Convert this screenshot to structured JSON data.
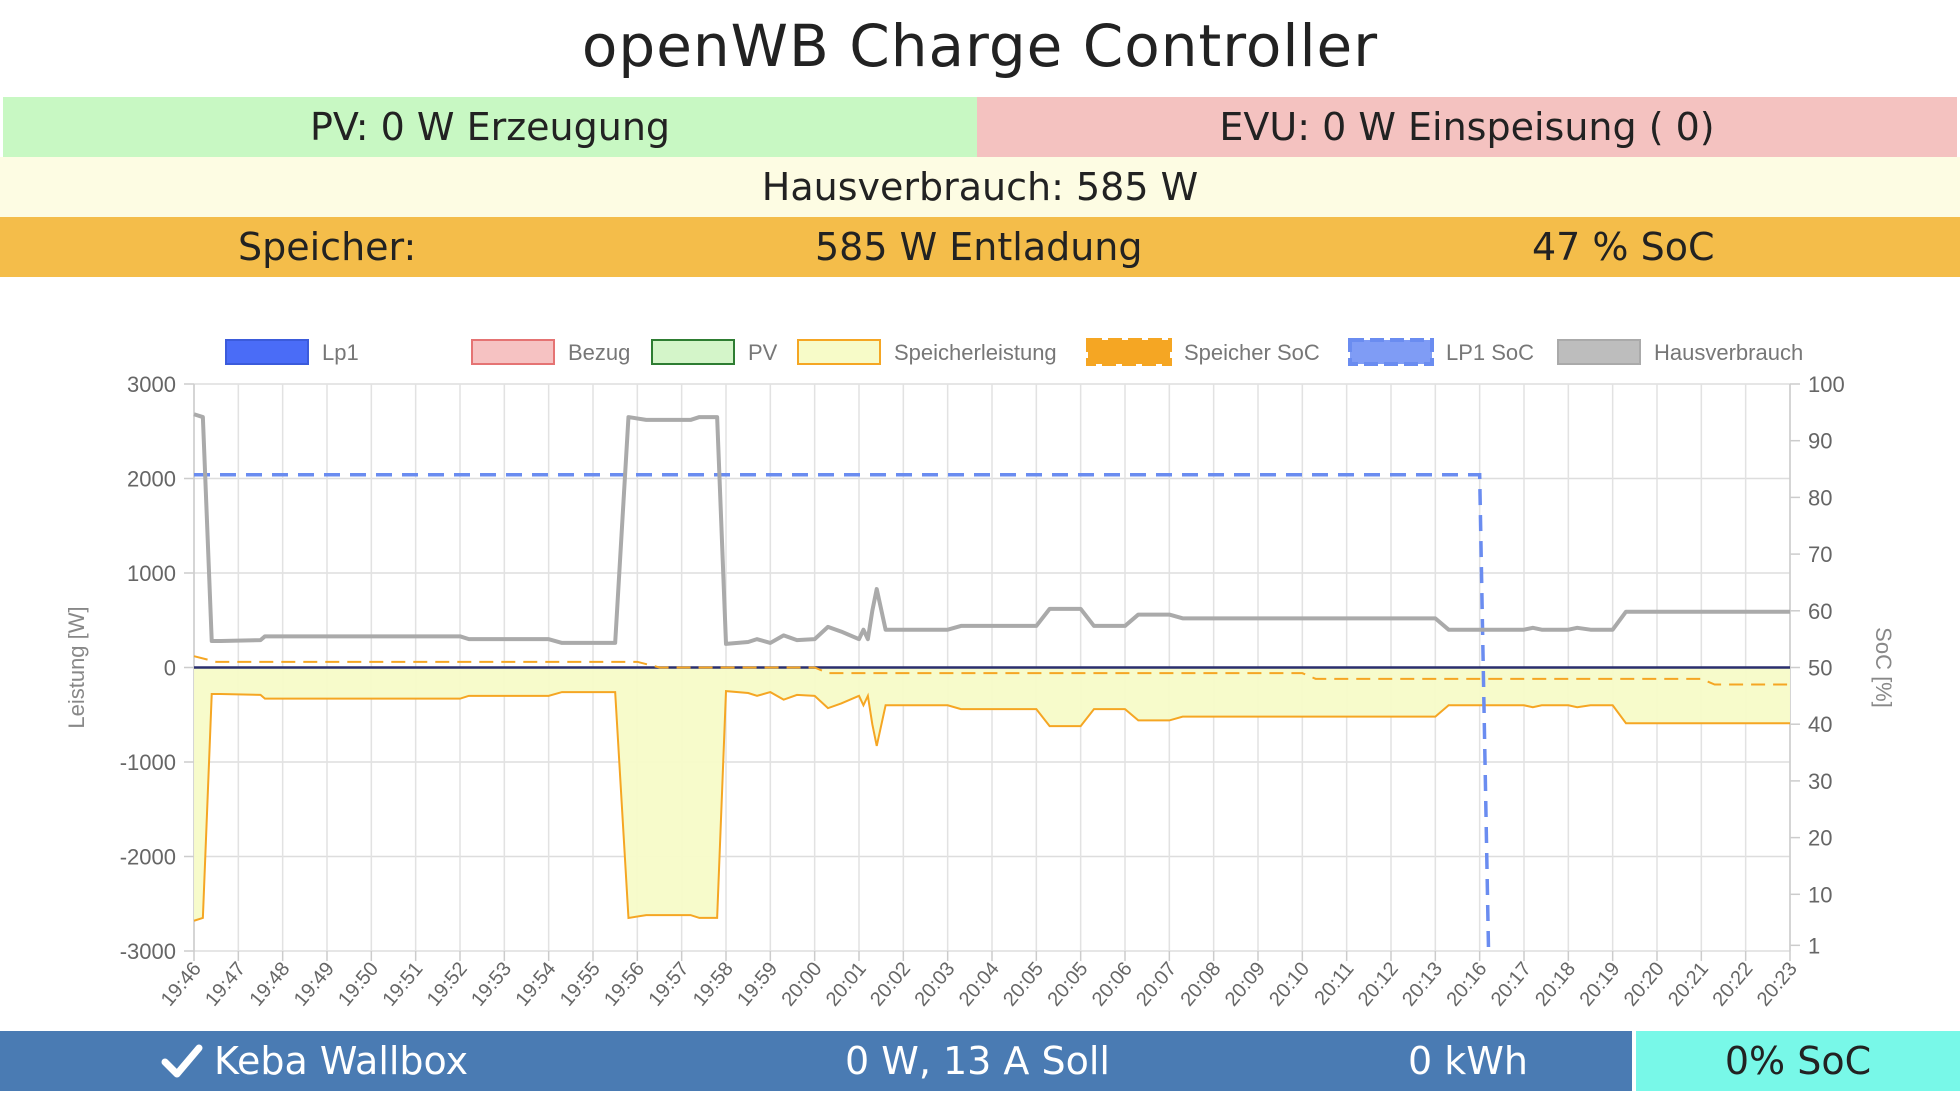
{
  "title": "openWB Charge Controller",
  "status": {
    "pv": "PV: 0 W Erzeugung",
    "evu": "EVU: 0 W Einspeisung ( 0)",
    "hausverbrauch": "Hausverbrauch: 585 W",
    "speicher_label": "Speicher:",
    "speicher_power": "585 W Entladung",
    "speicher_soc": "47 % SoC"
  },
  "wallbox": {
    "name": "Keba Wallbox",
    "power": "0 W, 13 A Soll",
    "energy": "0 kWh",
    "soc": "0% SoC",
    "icon": "check-icon"
  },
  "chart_data": {
    "type": "line",
    "ylabel": "Leistung [W]",
    "y2label": "SoC [%]",
    "ylim": [
      -3000,
      3000
    ],
    "yticks": [
      3000,
      2000,
      1000,
      0,
      -1000,
      -2000,
      -3000
    ],
    "y2lim": [
      0,
      100
    ],
    "y2ticks": [
      100,
      90,
      80,
      70,
      60,
      50,
      40,
      30,
      20,
      10,
      1
    ],
    "grid": true,
    "legend_position": "top",
    "x": [
      "19:46",
      "19:47",
      "19:48",
      "19:49",
      "19:50",
      "19:51",
      "19:52",
      "19:53",
      "19:54",
      "19:55",
      "19:56",
      "19:57",
      "19:58",
      "19:59",
      "20:00",
      "20:01",
      "20:02",
      "20:03",
      "20:04",
      "20:05",
      "20:05",
      "20:06",
      "20:07",
      "20:08",
      "20:09",
      "20:10",
      "20:11",
      "20:12",
      "20:13",
      "20:16",
      "20:17",
      "20:18",
      "20:19",
      "20:20",
      "20:21",
      "20:22",
      "20:23"
    ],
    "series": [
      {
        "name": "Lp1",
        "color": "#3b5bdb",
        "style": "solid",
        "fill": "#4a6cf7",
        "points": [
          [
            0,
            0
          ],
          [
            36,
            0
          ]
        ]
      },
      {
        "name": "Bezug",
        "color": "#e57373",
        "style": "solid",
        "fill": "#f6c2c2",
        "points": [
          [
            0,
            0
          ],
          [
            36,
            0
          ]
        ]
      },
      {
        "name": "PV",
        "color": "#2e7d32",
        "style": "solid",
        "fill": "#d4f5c9",
        "points": [
          [
            0,
            0
          ],
          [
            36,
            0
          ]
        ]
      },
      {
        "name": "Speicherleistung",
        "color": "#f5a623",
        "style": "solid",
        "fill": "#f7fbc8",
        "points": [
          [
            0,
            -2680
          ],
          [
            0.2,
            -2650
          ],
          [
            0.4,
            -280
          ],
          [
            0.6,
            -280
          ],
          [
            1.5,
            -290
          ],
          [
            1.6,
            -330
          ],
          [
            3.0,
            -330
          ],
          [
            6.0,
            -330
          ],
          [
            6.2,
            -300
          ],
          [
            8.0,
            -300
          ],
          [
            8.3,
            -260
          ],
          [
            9.5,
            -260
          ],
          [
            9.8,
            -2650
          ],
          [
            10.2,
            -2620
          ],
          [
            11.2,
            -2620
          ],
          [
            11.4,
            -2650
          ],
          [
            11.8,
            -2650
          ],
          [
            12.0,
            -250
          ],
          [
            12.5,
            -270
          ],
          [
            12.7,
            -300
          ],
          [
            13.0,
            -260
          ],
          [
            13.3,
            -340
          ],
          [
            13.6,
            -290
          ],
          [
            14.0,
            -300
          ],
          [
            14.3,
            -430
          ],
          [
            14.6,
            -380
          ],
          [
            15.0,
            -300
          ],
          [
            15.1,
            -400
          ],
          [
            15.2,
            -300
          ],
          [
            15.3,
            -600
          ],
          [
            15.4,
            -830
          ],
          [
            15.6,
            -400
          ],
          [
            17.0,
            -400
          ],
          [
            17.3,
            -440
          ],
          [
            19.0,
            -440
          ],
          [
            19.3,
            -620
          ],
          [
            20.0,
            -620
          ],
          [
            20.3,
            -440
          ],
          [
            21.0,
            -440
          ],
          [
            21.3,
            -560
          ],
          [
            22.0,
            -560
          ],
          [
            22.3,
            -520
          ],
          [
            28.0,
            -520
          ],
          [
            28.3,
            -400
          ],
          [
            30.0,
            -400
          ],
          [
            30.2,
            -420
          ],
          [
            30.4,
            -400
          ],
          [
            31.0,
            -400
          ],
          [
            31.2,
            -420
          ],
          [
            31.5,
            -400
          ],
          [
            32.0,
            -400
          ],
          [
            32.3,
            -590
          ],
          [
            36.0,
            -590
          ]
        ]
      },
      {
        "name": "Speicher SoC",
        "color": "#f5a623",
        "style": "dashed",
        "fill": "#f5a623",
        "axis": "right",
        "points": [
          [
            0,
            52
          ],
          [
            0.5,
            51
          ],
          [
            10.0,
            51
          ],
          [
            10.5,
            50
          ],
          [
            14.0,
            50
          ],
          [
            14.3,
            49
          ],
          [
            25.0,
            49
          ],
          [
            25.3,
            48
          ],
          [
            34.0,
            48
          ],
          [
            34.3,
            47
          ],
          [
            36.0,
            47
          ]
        ]
      },
      {
        "name": "LP1 SoC",
        "color": "#6a8cf0",
        "style": "dashed",
        "fill": "#7f9cf5",
        "axis": "right",
        "points": [
          [
            0,
            84
          ],
          [
            29.0,
            84
          ],
          [
            29.0,
            84
          ],
          [
            29.2,
            0
          ]
        ]
      },
      {
        "name": "Hausverbrauch",
        "color": "#aaaaaa",
        "style": "solid",
        "fill": "#bdbdbd",
        "points": [
          [
            0,
            2680
          ],
          [
            0.2,
            2650
          ],
          [
            0.4,
            280
          ],
          [
            0.6,
            280
          ],
          [
            1.5,
            290
          ],
          [
            1.6,
            330
          ],
          [
            3.0,
            330
          ],
          [
            6.0,
            330
          ],
          [
            6.2,
            300
          ],
          [
            8.0,
            300
          ],
          [
            8.3,
            260
          ],
          [
            9.5,
            260
          ],
          [
            9.8,
            2650
          ],
          [
            10.2,
            2620
          ],
          [
            11.2,
            2620
          ],
          [
            11.4,
            2650
          ],
          [
            11.8,
            2650
          ],
          [
            12.0,
            250
          ],
          [
            12.5,
            270
          ],
          [
            12.7,
            300
          ],
          [
            13.0,
            260
          ],
          [
            13.3,
            340
          ],
          [
            13.6,
            290
          ],
          [
            14.0,
            300
          ],
          [
            14.3,
            430
          ],
          [
            14.6,
            380
          ],
          [
            15.0,
            300
          ],
          [
            15.1,
            400
          ],
          [
            15.2,
            300
          ],
          [
            15.3,
            600
          ],
          [
            15.4,
            830
          ],
          [
            15.6,
            400
          ],
          [
            17.0,
            400
          ],
          [
            17.3,
            440
          ],
          [
            19.0,
            440
          ],
          [
            19.3,
            620
          ],
          [
            20.0,
            620
          ],
          [
            20.3,
            440
          ],
          [
            21.0,
            440
          ],
          [
            21.3,
            560
          ],
          [
            22.0,
            560
          ],
          [
            22.3,
            520
          ],
          [
            28.0,
            520
          ],
          [
            28.3,
            400
          ],
          [
            30.0,
            400
          ],
          [
            30.2,
            420
          ],
          [
            30.4,
            400
          ],
          [
            31.0,
            400
          ],
          [
            31.2,
            420
          ],
          [
            31.5,
            400
          ],
          [
            32.0,
            400
          ],
          [
            32.3,
            590
          ],
          [
            36.0,
            590
          ]
        ]
      }
    ]
  }
}
